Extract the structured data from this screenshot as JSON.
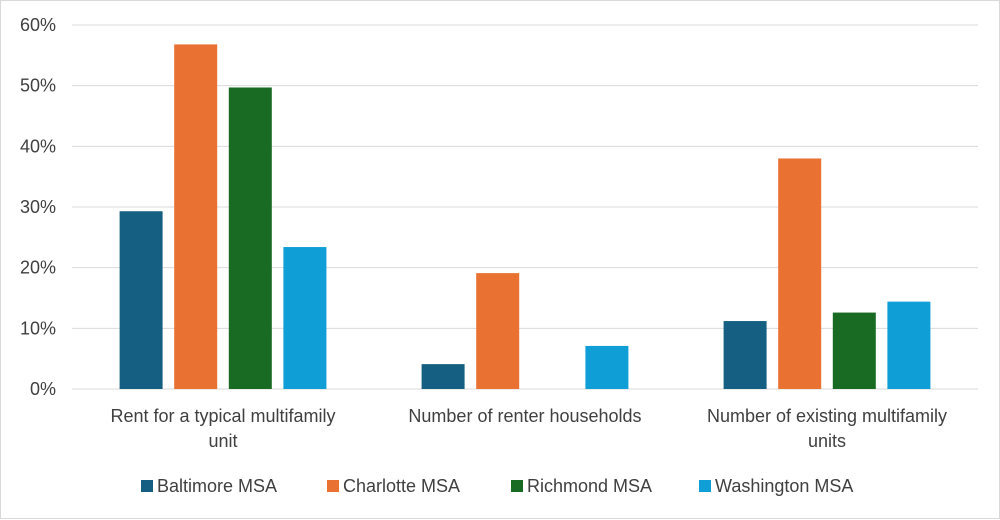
{
  "chart_data": {
    "type": "bar",
    "categories": [
      [
        "Rent for a typical multifamily",
        "unit"
      ],
      [
        "Number of renter households"
      ],
      [
        "Number of existing multifamily",
        "units"
      ]
    ],
    "series": [
      {
        "name": "Baltimore MSA",
        "color": "#156082",
        "values": [
          29.3,
          4.1,
          11.2
        ]
      },
      {
        "name": "Charlotte MSA",
        "color": "#e97132",
        "values": [
          56.8,
          19.1,
          38.0
        ]
      },
      {
        "name": "Richmond MSA",
        "color": "#196b24",
        "values": [
          49.7,
          null,
          12.6
        ]
      },
      {
        "name": "Washington MSA",
        "color": "#0f9ed5",
        "values": [
          23.4,
          7.1,
          14.4
        ]
      }
    ],
    "yticks": [
      "0%",
      "10%",
      "20%",
      "30%",
      "40%",
      "50%",
      "60%"
    ],
    "ylim": [
      0,
      60
    ],
    "grid": true,
    "legend_position": "bottom"
  }
}
